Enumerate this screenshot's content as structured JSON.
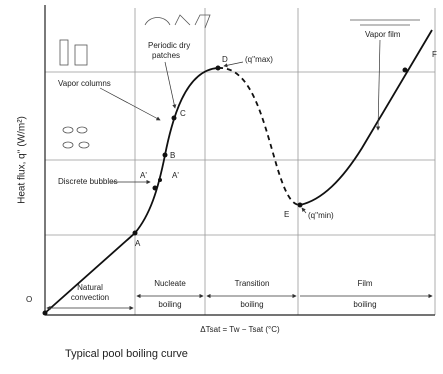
{
  "y_axis_label": "Heat flux, q'' (W/m²)",
  "points": [
    "O",
    "A",
    "A'",
    "A'",
    "B",
    "C",
    "D",
    "E",
    "F"
  ],
  "annotations": {
    "vapor_columns": "Vapor columns",
    "dry_patches": [
      "Periodic dry",
      "patches"
    ],
    "discrete_bubbles": "Discrete bubbles",
    "vapor_film": "Vapor film",
    "q_max": "(q''max)",
    "q_min": "(q''min)"
  },
  "regions": [
    [
      "Natural",
      "convection"
    ],
    [
      "Nucleate",
      "boiling"
    ],
    [
      "Transition",
      "boiling"
    ],
    [
      "Film",
      "boiling"
    ]
  ],
  "x_axis_label": "ΔTsat = Tw − Tsat (°C)",
  "caption": "Typical pool boiling curve"
}
